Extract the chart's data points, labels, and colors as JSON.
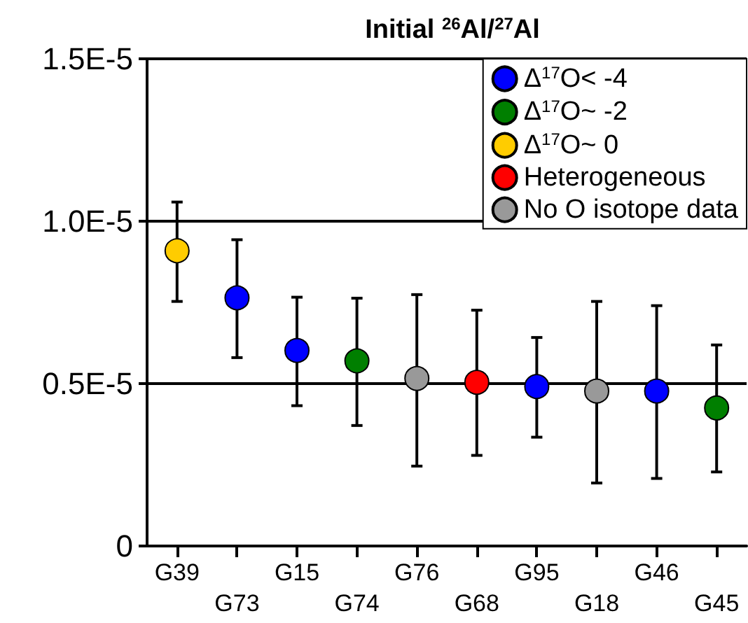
{
  "chart_data": {
    "type": "scatter",
    "title": "Initial $^{26}$Al/$^{27}$Al",
    "categories": [
      "G39",
      "G73",
      "G15",
      "G74",
      "G76",
      "G68",
      "G95",
      "G18",
      "G46",
      "G45"
    ],
    "ylim": [
      0,
      1.5e-05
    ],
    "yticks": [
      {
        "value": 0,
        "label": "0"
      },
      {
        "value": 5e-06,
        "label": "0.5E-5"
      },
      {
        "value": 1e-05,
        "label": "1.0E-5"
      },
      {
        "value": 1.5e-05,
        "label": "1.5E-5"
      }
    ],
    "grid": "y",
    "legend": "top right",
    "marker": "circle",
    "series": [
      {
        "name": "Δ$^{17}$O< -4",
        "color": "#0000ff",
        "x": [
          "G73",
          "G15",
          "G95",
          "G46"
        ],
        "values": [
          7.64e-06,
          6.02e-06,
          4.91e-06,
          4.77e-06
        ],
        "errors": [
          [
            5.8e-06,
            9.43e-06
          ],
          [
            4.32e-06,
            7.66e-06
          ],
          [
            3.35e-06,
            6.42e-06
          ],
          [
            2.08e-06,
            7.4e-06
          ]
        ]
      },
      {
        "name": "Δ$^{17}$O~ -2",
        "color": "#007f00",
        "x": [
          "G74",
          "G45"
        ],
        "values": [
          5.7e-06,
          4.25e-06
        ],
        "errors": [
          [
            3.71e-06,
            7.63e-06
          ],
          [
            2.28e-06,
            6.19e-06
          ]
        ]
      },
      {
        "name": "Δ$^{17}$O~ 0",
        "color": "#ffcc00",
        "x": [
          "G39"
        ],
        "values": [
          9.09e-06
        ],
        "errors": [
          [
            7.53e-06,
            1.059e-05
          ]
        ]
      },
      {
        "name": "Heterogeneous",
        "color": "#ff0000",
        "x": [
          "G68"
        ],
        "values": [
          5.04e-06
        ],
        "errors": [
          [
            2.79e-06,
            7.26e-06
          ]
        ]
      },
      {
        "name": "No O isotope data",
        "color": "#999999",
        "x": [
          "G76",
          "G18"
        ],
        "values": [
          5.16e-06,
          4.77e-06
        ],
        "errors": [
          [
            2.46e-06,
            7.74e-06
          ],
          [
            1.94e-06,
            7.53e-06
          ]
        ]
      }
    ]
  }
}
